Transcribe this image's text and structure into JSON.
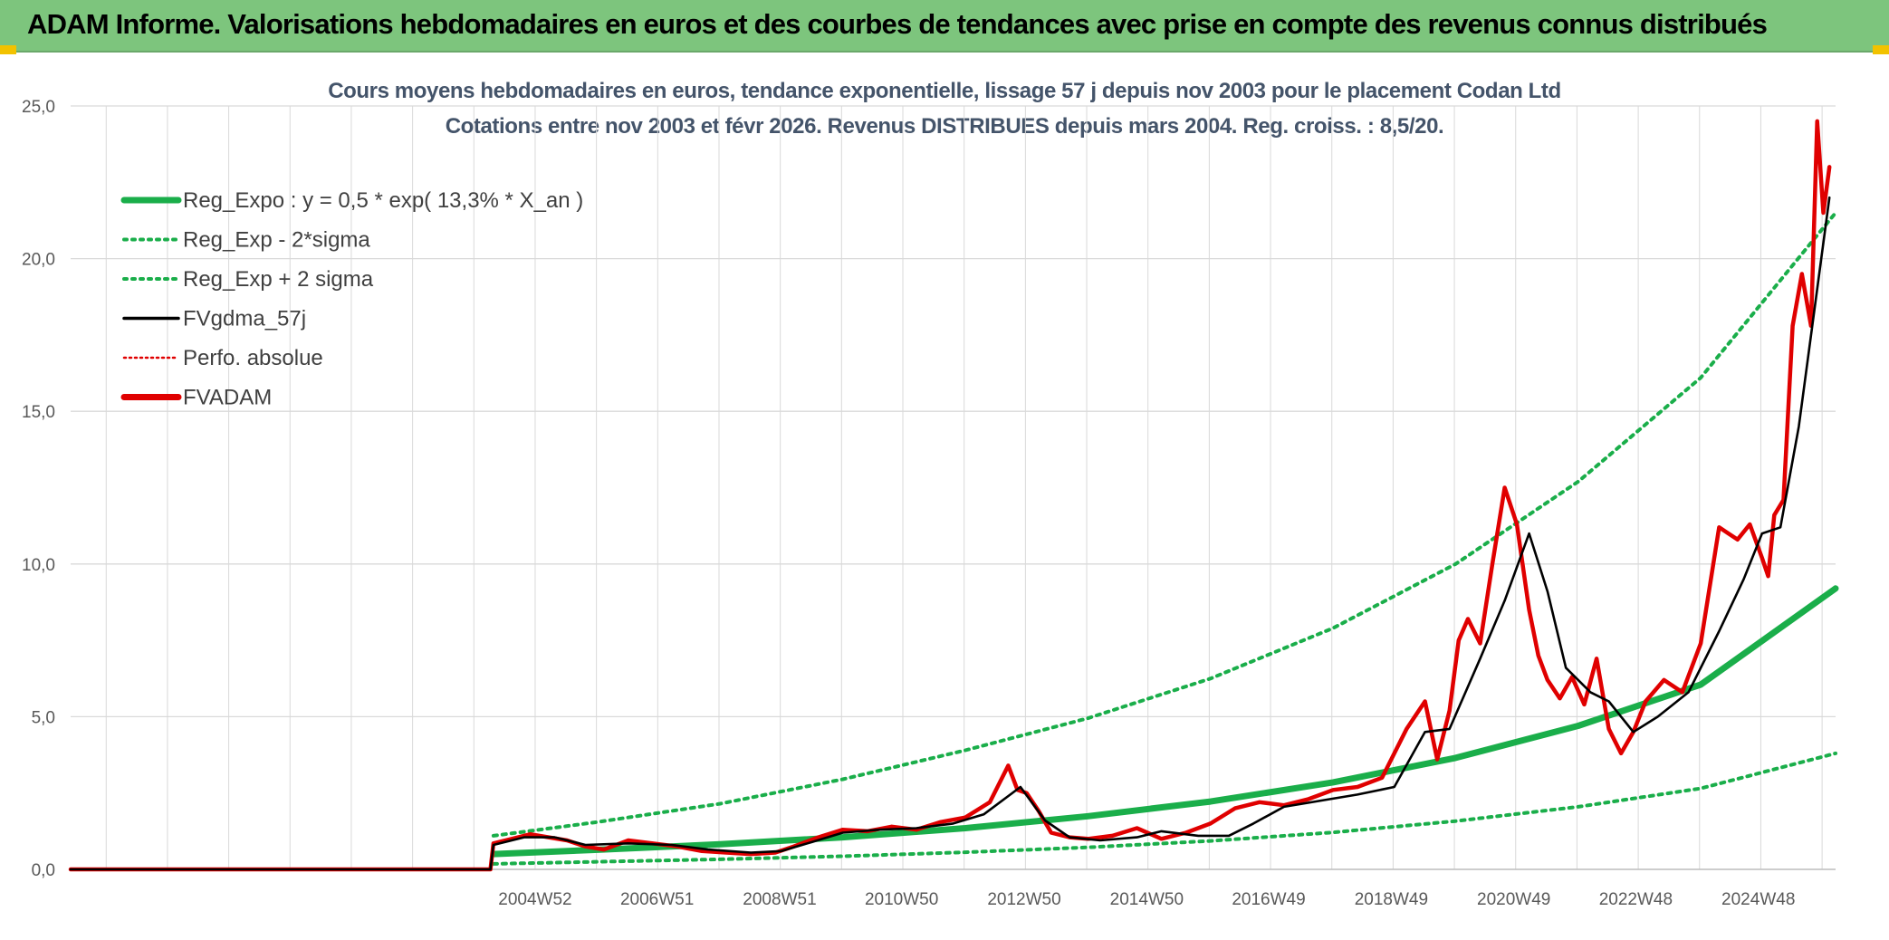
{
  "banner": {
    "title": "ADAM Informe. Valorisations hebdomadaires en euros et des courbes de tendances avec prise en compte des revenus connus distribués"
  },
  "colors": {
    "banner_bg": "#7dc57d",
    "reg_expo": "#1aae4a",
    "sigma": "#1aae4a",
    "gdma": "#000000",
    "perfo": "#e00000",
    "fvadam": "#e00000",
    "grid": "#d9d9d9"
  },
  "chart_data": {
    "type": "line",
    "title": "Cours moyens hebdomadaires en euros, tendance exponentielle, lissage 57 j depuis nov 2003 pour le placement Codan Ltd",
    "subtitle": "Cotations entre nov 2003 et févr 2026. Revenus DISTRIBUES depuis mars 2004. Reg. croiss. : 8,5/20.",
    "xlabel": "",
    "ylabel": "",
    "x_unit": "years",
    "xlim": [
      1997.4,
      2026.2
    ],
    "ylim": [
      0,
      25
    ],
    "y_ticks": [
      0,
      5,
      10,
      15,
      20,
      25
    ],
    "y_tick_labels": [
      "0,0",
      "5,0",
      "10,0",
      "15,0",
      "20,0",
      "25,0"
    ],
    "x_ticks": [
      {
        "label": "2004W52",
        "x": 2004.98
      },
      {
        "label": "2006W51",
        "x": 2006.97
      },
      {
        "label": "2008W51",
        "x": 2008.97
      },
      {
        "label": "2010W50",
        "x": 2010.96
      },
      {
        "label": "2012W50",
        "x": 2012.96
      },
      {
        "label": "2014W50",
        "x": 2014.96
      },
      {
        "label": "2016W49",
        "x": 2016.95
      },
      {
        "label": "2018W49",
        "x": 2018.95
      },
      {
        "label": "2020W49",
        "x": 2020.95
      },
      {
        "label": "2022W48",
        "x": 2022.94
      },
      {
        "label": "2024W48",
        "x": 2024.94
      }
    ],
    "legend": {
      "position": "top-left",
      "entries": [
        {
          "label": "Reg_Expo : y = 0,5 * exp( 13,3% *  X_an )",
          "style": "solid-thick",
          "color": "#1aae4a"
        },
        {
          "label": "Reg_Exp - 2*sigma",
          "style": "dotted",
          "color": "#1aae4a"
        },
        {
          "label": "Reg_Exp + 2 sigma",
          "style": "dotted",
          "color": "#1aae4a"
        },
        {
          "label": "FVgdma_57j",
          "style": "solid",
          "color": "#000000"
        },
        {
          "label": "Perfo. absolue",
          "style": "dotted-thin",
          "color": "#e00000"
        },
        {
          "label": "FVADAM",
          "style": "solid-thick",
          "color": "#e00000"
        }
      ]
    },
    "series": [
      {
        "name": "Reg_Expo : y = 0,5 * exp( 13,3% *  X_an )",
        "x": [
          2004.3,
          2006,
          2008,
          2010,
          2012,
          2014,
          2016,
          2018,
          2020,
          2022,
          2024,
          2026.2
        ],
        "y": [
          0.5,
          0.64,
          0.82,
          1.05,
          1.35,
          1.74,
          2.22,
          2.85,
          3.65,
          4.7,
          6.05,
          9.2
        ]
      },
      {
        "name": "Reg_Exp - 2*sigma",
        "x": [
          2004.3,
          2006,
          2008,
          2010,
          2012,
          2014,
          2016,
          2018,
          2020,
          2022,
          2024,
          2026.2
        ],
        "y": [
          0.18,
          0.25,
          0.33,
          0.43,
          0.56,
          0.72,
          0.93,
          1.21,
          1.58,
          2.05,
          2.65,
          3.8
        ]
      },
      {
        "name": "Reg_Exp + 2 sigma",
        "x": [
          2004.3,
          2006,
          2008,
          2010,
          2012,
          2014,
          2016,
          2018,
          2020,
          2022,
          2024,
          2026.2
        ],
        "y": [
          1.1,
          1.55,
          2.15,
          2.95,
          3.9,
          4.95,
          6.25,
          7.9,
          10.0,
          12.7,
          16.1,
          21.5
        ]
      },
      {
        "name": "FVgdma_57j",
        "x": [
          1997.4,
          2004.25,
          2004.3,
          2004.8,
          2005.3,
          2005.8,
          2006.5,
          2007.2,
          2007.8,
          2008.5,
          2009.0,
          2009.5,
          2010.0,
          2010.6,
          2011.2,
          2011.8,
          2012.3,
          2012.9,
          2013.3,
          2013.7,
          2014.2,
          2014.8,
          2015.2,
          2015.8,
          2016.3,
          2016.7,
          2017.2,
          2017.8,
          2018.4,
          2019.0,
          2019.5,
          2019.9,
          2020.4,
          2020.8,
          2021.2,
          2021.5,
          2021.8,
          2022.2,
          2022.5,
          2022.9,
          2023.3,
          2023.8,
          2024.3,
          2024.7,
          2025.0,
          2025.3,
          2025.6,
          2026.1
        ],
        "y": [
          0.0,
          0.0,
          0.8,
          1.05,
          1.05,
          0.8,
          0.85,
          0.8,
          0.65,
          0.55,
          0.6,
          0.9,
          1.2,
          1.3,
          1.35,
          1.5,
          1.8,
          2.7,
          1.6,
          1.05,
          0.95,
          1.05,
          1.25,
          1.1,
          1.1,
          1.5,
          2.05,
          2.25,
          2.45,
          2.7,
          4.5,
          4.6,
          6.9,
          8.8,
          11.0,
          9.1,
          6.6,
          5.8,
          5.5,
          4.5,
          5.0,
          5.8,
          7.8,
          9.5,
          11.0,
          11.2,
          14.5,
          22.0
        ]
      },
      {
        "name": "Perfo. absolue",
        "x": [
          1997.4,
          2004.25
        ],
        "y": [
          0.0,
          0.0
        ]
      },
      {
        "name": "FVADAM",
        "x": [
          1997.4,
          2004.25,
          2004.3,
          2004.6,
          2004.9,
          2005.2,
          2005.5,
          2005.8,
          2006.1,
          2006.5,
          2006.9,
          2007.3,
          2007.7,
          2008.1,
          2008.5,
          2008.9,
          2009.2,
          2009.6,
          2010.0,
          2010.4,
          2010.8,
          2011.2,
          2011.6,
          2012.0,
          2012.4,
          2012.7,
          2012.85,
          2013.0,
          2013.2,
          2013.4,
          2013.7,
          2014.0,
          2014.4,
          2014.8,
          2015.2,
          2015.6,
          2016.0,
          2016.4,
          2016.8,
          2017.2,
          2017.6,
          2018.0,
          2018.4,
          2018.8,
          2019.2,
          2019.5,
          2019.7,
          2019.9,
          2020.05,
          2020.2,
          2020.4,
          2020.6,
          2020.8,
          2021.0,
          2021.2,
          2021.35,
          2021.5,
          2021.7,
          2021.9,
          2022.1,
          2022.3,
          2022.5,
          2022.7,
          2022.9,
          2023.1,
          2023.4,
          2023.7,
          2024.0,
          2024.3,
          2024.6,
          2024.8,
          2025.0,
          2025.1,
          2025.2,
          2025.35,
          2025.5,
          2025.65,
          2025.8,
          2025.9,
          2026.0,
          2026.1
        ],
        "y": [
          0.0,
          0.0,
          0.85,
          1.0,
          1.15,
          1.05,
          0.95,
          0.75,
          0.65,
          0.95,
          0.85,
          0.75,
          0.6,
          0.55,
          0.5,
          0.55,
          0.75,
          1.05,
          1.3,
          1.25,
          1.4,
          1.3,
          1.55,
          1.7,
          2.2,
          3.4,
          2.6,
          2.5,
          1.9,
          1.2,
          1.05,
          1.0,
          1.1,
          1.35,
          1.0,
          1.2,
          1.5,
          2.0,
          2.2,
          2.1,
          2.3,
          2.6,
          2.7,
          3.0,
          4.6,
          5.5,
          3.6,
          5.2,
          7.5,
          8.2,
          7.4,
          10.0,
          12.5,
          11.3,
          8.5,
          7.0,
          6.2,
          5.6,
          6.3,
          5.4,
          6.9,
          4.6,
          3.8,
          4.5,
          5.5,
          6.2,
          5.8,
          7.4,
          11.2,
          10.8,
          11.3,
          10.2,
          9.6,
          11.6,
          12.1,
          17.8,
          19.5,
          17.8,
          24.5,
          21.5,
          23.0
        ]
      }
    ]
  }
}
